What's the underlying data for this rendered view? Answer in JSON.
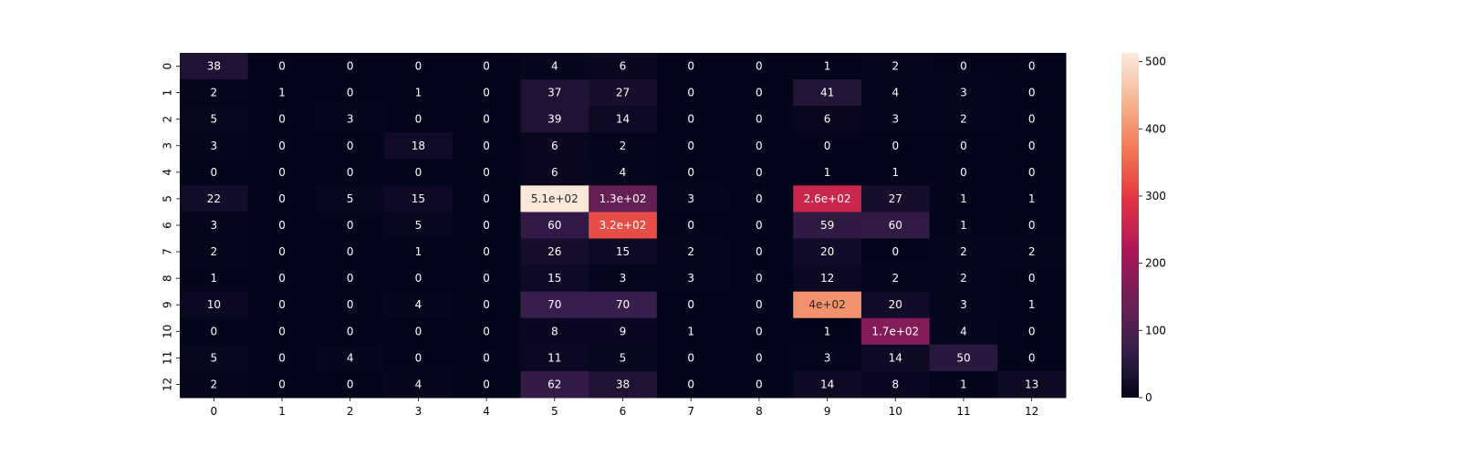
{
  "chart_data": {
    "type": "heatmap",
    "title": "",
    "xlabel": "",
    "ylabel": "",
    "x_categories": [
      "0",
      "1",
      "2",
      "3",
      "4",
      "5",
      "6",
      "7",
      "8",
      "9",
      "10",
      "11",
      "12"
    ],
    "y_categories": [
      "0",
      "1",
      "2",
      "3",
      "4",
      "5",
      "6",
      "7",
      "8",
      "9",
      "10",
      "11",
      "12"
    ],
    "values": [
      [
        38,
        0,
        0,
        0,
        0,
        4,
        6,
        0,
        0,
        1,
        2,
        0,
        0
      ],
      [
        2,
        1,
        0,
        1,
        0,
        37,
        27,
        0,
        0,
        41,
        4,
        3,
        0
      ],
      [
        5,
        0,
        3,
        0,
        0,
        39,
        14,
        0,
        0,
        6,
        3,
        2,
        0
      ],
      [
        3,
        0,
        0,
        18,
        0,
        6,
        2,
        0,
        0,
        0,
        0,
        0,
        0
      ],
      [
        0,
        0,
        0,
        0,
        0,
        6,
        4,
        0,
        0,
        1,
        1,
        0,
        0
      ],
      [
        22,
        0,
        5,
        15,
        0,
        510,
        130,
        3,
        0,
        260,
        27,
        1,
        1
      ],
      [
        3,
        0,
        0,
        5,
        0,
        60,
        320,
        0,
        0,
        59,
        60,
        1,
        0
      ],
      [
        2,
        0,
        0,
        1,
        0,
        26,
        15,
        2,
        0,
        20,
        0,
        2,
        2
      ],
      [
        1,
        0,
        0,
        0,
        0,
        15,
        3,
        3,
        0,
        12,
        2,
        2,
        0
      ],
      [
        10,
        0,
        0,
        4,
        0,
        70,
        70,
        0,
        0,
        400,
        20,
        3,
        1
      ],
      [
        0,
        0,
        0,
        0,
        0,
        8,
        9,
        1,
        0,
        1,
        170,
        4,
        0
      ],
      [
        5,
        0,
        4,
        0,
        0,
        11,
        5,
        0,
        0,
        3,
        14,
        50,
        0
      ],
      [
        2,
        0,
        0,
        4,
        0,
        62,
        38,
        0,
        0,
        14,
        8,
        1,
        13
      ]
    ],
    "cell_labels": [
      [
        "38",
        "0",
        "0",
        "0",
        "0",
        "4",
        "6",
        "0",
        "0",
        "1",
        "2",
        "0",
        "0"
      ],
      [
        "2",
        "1",
        "0",
        "1",
        "0",
        "37",
        "27",
        "0",
        "0",
        "41",
        "4",
        "3",
        "0"
      ],
      [
        "5",
        "0",
        "3",
        "0",
        "0",
        "39",
        "14",
        "0",
        "0",
        "6",
        "3",
        "2",
        "0"
      ],
      [
        "3",
        "0",
        "0",
        "18",
        "0",
        "6",
        "2",
        "0",
        "0",
        "0",
        "0",
        "0",
        "0"
      ],
      [
        "0",
        "0",
        "0",
        "0",
        "0",
        "6",
        "4",
        "0",
        "0",
        "1",
        "1",
        "0",
        "0"
      ],
      [
        "22",
        "0",
        "5",
        "15",
        "0",
        "5.1e+02",
        "1.3e+02",
        "3",
        "0",
        "2.6e+02",
        "27",
        "1",
        "1"
      ],
      [
        "3",
        "0",
        "0",
        "5",
        "0",
        "60",
        "3.2e+02",
        "0",
        "0",
        "59",
        "60",
        "1",
        "0"
      ],
      [
        "2",
        "0",
        "0",
        "1",
        "0",
        "26",
        "15",
        "2",
        "0",
        "20",
        "0",
        "2",
        "2"
      ],
      [
        "1",
        "0",
        "0",
        "0",
        "0",
        "15",
        "3",
        "3",
        "0",
        "12",
        "2",
        "2",
        "0"
      ],
      [
        "10",
        "0",
        "0",
        "4",
        "0",
        "70",
        "70",
        "0",
        "0",
        "4e+02",
        "20",
        "3",
        "1"
      ],
      [
        "0",
        "0",
        "0",
        "0",
        "0",
        "8",
        "9",
        "1",
        "0",
        "1",
        "1.7e+02",
        "4",
        "0"
      ],
      [
        "5",
        "0",
        "4",
        "0",
        "0",
        "11",
        "5",
        "0",
        "0",
        "3",
        "14",
        "50",
        "0"
      ],
      [
        "2",
        "0",
        "0",
        "4",
        "0",
        "62",
        "38",
        "0",
        "0",
        "14",
        "8",
        "1",
        "13"
      ]
    ],
    "colorbar": {
      "min": 0,
      "max": 513,
      "ticks": [
        0,
        100,
        200,
        300,
        400,
        500
      ],
      "colormap": "rocket",
      "colormap_stops": [
        "#03051a",
        "#3b1f4e",
        "#701f57",
        "#ad1759",
        "#e13342",
        "#f37651",
        "#f6b48f",
        "#faebdd"
      ]
    },
    "grid": false,
    "legend": "colorbar-right"
  }
}
